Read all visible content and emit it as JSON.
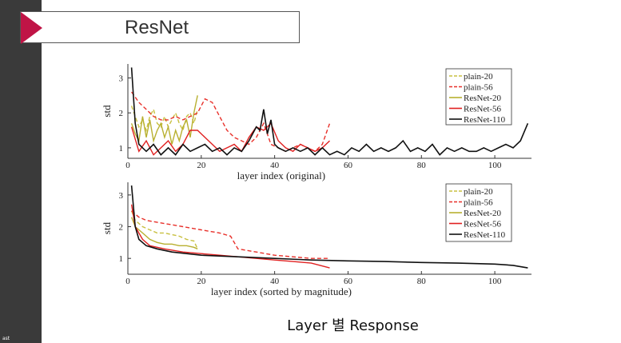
{
  "slide": {
    "title": "ResNet",
    "caption": "Layer 별 Response",
    "corner_text": "ast"
  },
  "colors": {
    "sidebar": "#3a3a3a",
    "accent": "#c01446",
    "plain-20": "#c8c040",
    "plain-56": "#e8302a",
    "ResNet-20": "#b8b030",
    "ResNet-56": "#e02020",
    "ResNet-110": "#111111"
  },
  "chart_data": [
    {
      "type": "line",
      "xlabel": "layer index (original)",
      "ylabel": "std",
      "xlim": [
        0,
        110
      ],
      "ylim": [
        0.7,
        3.4
      ],
      "xticks": [
        0,
        20,
        40,
        60,
        80,
        100
      ],
      "yticks": [
        1,
        2,
        3
      ],
      "legend": "top-right",
      "series": [
        {
          "name": "plain-20",
          "style": "dashed",
          "color": "#c8c040",
          "x": [
            1,
            2,
            3,
            4,
            5,
            6,
            7,
            8,
            9,
            10,
            11,
            12,
            13,
            14,
            15,
            16,
            17,
            18,
            19
          ],
          "y": [
            2.2,
            1.9,
            1.6,
            1.8,
            1.5,
            1.9,
            2.1,
            1.7,
            1.6,
            1.9,
            1.6,
            1.8,
            2.0,
            1.7,
            1.5,
            1.9,
            2.0,
            1.7,
            2.1
          ]
        },
        {
          "name": "plain-56",
          "style": "dashed",
          "color": "#e8302a",
          "x": [
            1,
            3,
            5,
            7,
            9,
            11,
            13,
            15,
            17,
            19,
            21,
            23,
            25,
            27,
            29,
            31,
            33,
            35,
            37,
            39,
            41,
            43,
            45,
            47,
            49,
            51,
            53,
            55
          ],
          "y": [
            2.6,
            2.3,
            2.1,
            1.9,
            1.8,
            1.8,
            1.9,
            1.8,
            1.9,
            2.0,
            2.4,
            2.3,
            1.9,
            1.5,
            1.3,
            1.2,
            1.1,
            1.3,
            1.7,
            1.1,
            1.0,
            0.9,
            1.0,
            1.1,
            1.0,
            0.9,
            1.1,
            1.7
          ]
        },
        {
          "name": "ResNet-20",
          "style": "solid",
          "color": "#b8b030",
          "x": [
            1,
            2,
            3,
            4,
            5,
            6,
            7,
            8,
            9,
            10,
            11,
            12,
            13,
            14,
            15,
            16,
            17,
            18,
            19
          ],
          "y": [
            1.7,
            1.4,
            1.2,
            1.9,
            1.3,
            1.8,
            1.2,
            1.5,
            1.7,
            1.3,
            1.6,
            1.1,
            1.5,
            1.2,
            1.6,
            1.8,
            1.3,
            2.0,
            2.5
          ]
        },
        {
          "name": "ResNet-56",
          "style": "solid",
          "color": "#e02020",
          "x": [
            1,
            3,
            5,
            7,
            9,
            11,
            13,
            15,
            17,
            19,
            21,
            23,
            25,
            27,
            29,
            31,
            33,
            35,
            37,
            39,
            41,
            43,
            45,
            47,
            49,
            51,
            53,
            55
          ],
          "y": [
            1.6,
            0.9,
            1.2,
            0.8,
            1.0,
            1.2,
            0.9,
            1.1,
            1.5,
            1.5,
            1.3,
            1.1,
            0.9,
            1.0,
            1.1,
            0.9,
            1.3,
            1.6,
            1.5,
            1.7,
            1.2,
            1.0,
            0.9,
            1.1,
            1.0,
            0.9,
            1.0,
            1.2
          ]
        },
        {
          "name": "ResNet-110",
          "style": "solid",
          "color": "#111111",
          "x": [
            1,
            2,
            3,
            5,
            7,
            9,
            11,
            13,
            15,
            17,
            19,
            21,
            23,
            25,
            27,
            29,
            31,
            33,
            35,
            36,
            37,
            38,
            39,
            40,
            41,
            43,
            45,
            47,
            49,
            51,
            53,
            55,
            57,
            59,
            61,
            63,
            65,
            67,
            69,
            71,
            73,
            75,
            77,
            79,
            81,
            83,
            85,
            87,
            89,
            91,
            93,
            95,
            97,
            99,
            101,
            103,
            105,
            107,
            109
          ],
          "y": [
            3.3,
            1.7,
            1.1,
            0.9,
            1.1,
            0.8,
            1.0,
            0.8,
            1.1,
            0.9,
            1.0,
            1.1,
            0.9,
            1.0,
            0.8,
            1.0,
            0.9,
            1.2,
            1.6,
            1.5,
            2.1,
            1.4,
            1.8,
            1.1,
            1.0,
            0.9,
            1.0,
            0.9,
            1.0,
            0.8,
            1.0,
            0.8,
            0.9,
            0.8,
            1.0,
            0.9,
            1.1,
            0.9,
            1.0,
            0.9,
            1.0,
            1.2,
            0.9,
            1.0,
            0.9,
            1.1,
            0.8,
            1.0,
            0.9,
            1.0,
            0.9,
            0.9,
            1.0,
            0.9,
            1.0,
            1.1,
            1.0,
            1.2,
            1.7
          ]
        }
      ]
    },
    {
      "type": "line",
      "xlabel": "layer index (sorted by magnitude)",
      "ylabel": "std",
      "xlim": [
        0,
        110
      ],
      "ylim": [
        0.5,
        3.4
      ],
      "xticks": [
        0,
        20,
        40,
        60,
        80,
        100
      ],
      "yticks": [
        1,
        2,
        3
      ],
      "legend": "top-right",
      "series": [
        {
          "name": "plain-20",
          "style": "dashed",
          "color": "#c8c040",
          "x": [
            1,
            2,
            4,
            6,
            8,
            10,
            12,
            14,
            16,
            18,
            19
          ],
          "y": [
            2.5,
            2.2,
            2.0,
            1.9,
            1.8,
            1.8,
            1.75,
            1.7,
            1.6,
            1.55,
            1.3
          ]
        },
        {
          "name": "plain-56",
          "style": "dashed",
          "color": "#e8302a",
          "x": [
            1,
            3,
            5,
            10,
            15,
            20,
            25,
            28,
            30,
            35,
            40,
            45,
            50,
            55
          ],
          "y": [
            2.5,
            2.3,
            2.2,
            2.1,
            2.0,
            1.9,
            1.8,
            1.7,
            1.3,
            1.2,
            1.1,
            1.05,
            1.0,
            1.0
          ]
        },
        {
          "name": "ResNet-20",
          "style": "solid",
          "color": "#b8b030",
          "x": [
            1,
            2,
            4,
            6,
            8,
            10,
            12,
            14,
            16,
            18,
            19
          ],
          "y": [
            2.3,
            2.0,
            1.8,
            1.6,
            1.5,
            1.45,
            1.45,
            1.4,
            1.4,
            1.35,
            1.3
          ]
        },
        {
          "name": "ResNet-56",
          "style": "solid",
          "color": "#e02020",
          "x": [
            1,
            2,
            4,
            6,
            10,
            15,
            20,
            25,
            30,
            35,
            40,
            45,
            50,
            55
          ],
          "y": [
            2.7,
            2.0,
            1.6,
            1.4,
            1.3,
            1.2,
            1.15,
            1.1,
            1.05,
            1.0,
            0.95,
            0.9,
            0.85,
            0.7
          ]
        },
        {
          "name": "ResNet-110",
          "style": "solid",
          "color": "#111111",
          "x": [
            1,
            2,
            3,
            5,
            8,
            12,
            20,
            30,
            40,
            50,
            60,
            70,
            80,
            90,
            100,
            105,
            109
          ],
          "y": [
            3.3,
            2.0,
            1.6,
            1.4,
            1.3,
            1.2,
            1.1,
            1.05,
            1.0,
            0.95,
            0.92,
            0.9,
            0.87,
            0.85,
            0.82,
            0.78,
            0.7
          ]
        }
      ]
    }
  ]
}
